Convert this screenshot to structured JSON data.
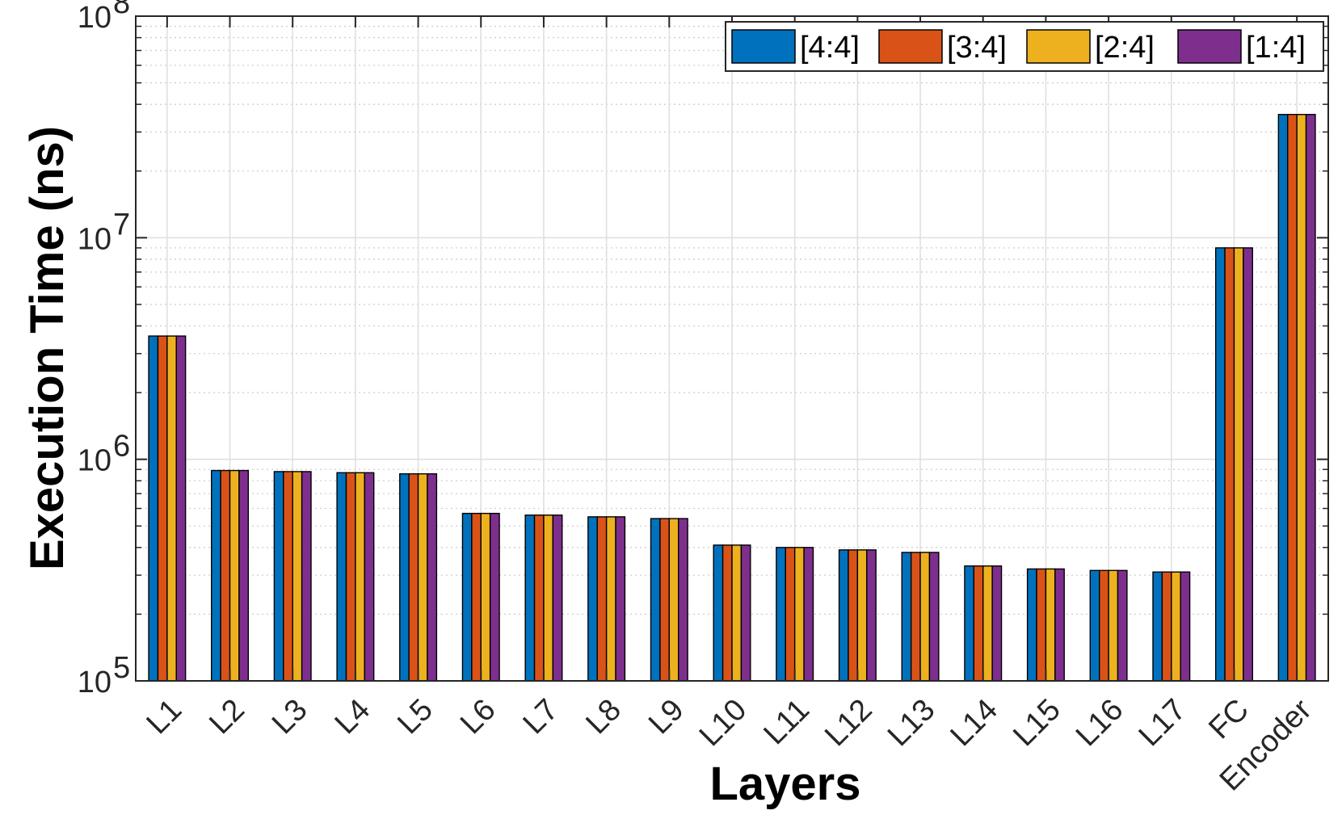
{
  "chart_data": {
    "type": "bar",
    "categories": [
      "L1",
      "L2",
      "L3",
      "L4",
      "L5",
      "L6",
      "L7",
      "L8",
      "L9",
      "L10",
      "L11",
      "L12",
      "L13",
      "L14",
      "L15",
      "L16",
      "L17",
      "FC",
      "Encoder"
    ],
    "series": [
      {
        "name": "[4:4]",
        "color": "#0072BD",
        "values": [
          3600000,
          890000,
          880000,
          870000,
          860000,
          570000,
          560000,
          550000,
          540000,
          410000,
          400000,
          390000,
          380000,
          330000,
          320000,
          315000,
          310000,
          9000000,
          36000000
        ]
      },
      {
        "name": "[3:4]",
        "color": "#D95319",
        "values": [
          3600000,
          890000,
          880000,
          870000,
          860000,
          570000,
          560000,
          550000,
          540000,
          410000,
          400000,
          390000,
          380000,
          330000,
          320000,
          315000,
          310000,
          9000000,
          36000000
        ]
      },
      {
        "name": "[2:4]",
        "color": "#EDB120",
        "values": [
          3600000,
          890000,
          880000,
          870000,
          860000,
          570000,
          560000,
          550000,
          540000,
          410000,
          400000,
          390000,
          380000,
          330000,
          320000,
          315000,
          310000,
          9000000,
          36000000
        ]
      },
      {
        "name": "[1:4]",
        "color": "#7E2F8E",
        "values": [
          3600000,
          890000,
          880000,
          870000,
          860000,
          570000,
          560000,
          550000,
          540000,
          410000,
          400000,
          390000,
          380000,
          330000,
          320000,
          315000,
          310000,
          9000000,
          36000000
        ]
      }
    ],
    "xlabel": "Layers",
    "ylabel": "Execution Time (ns)",
    "yscale": "log",
    "ylim": [
      100000,
      100000000
    ],
    "yticks": [
      {
        "base": "10",
        "exp": "5"
      },
      {
        "base": "10",
        "exp": "6"
      },
      {
        "base": "10",
        "exp": "7"
      },
      {
        "base": "10",
        "exp": "8"
      }
    ],
    "grid": true,
    "legend_position": "top-right",
    "legend_orientation": "horizontal"
  }
}
